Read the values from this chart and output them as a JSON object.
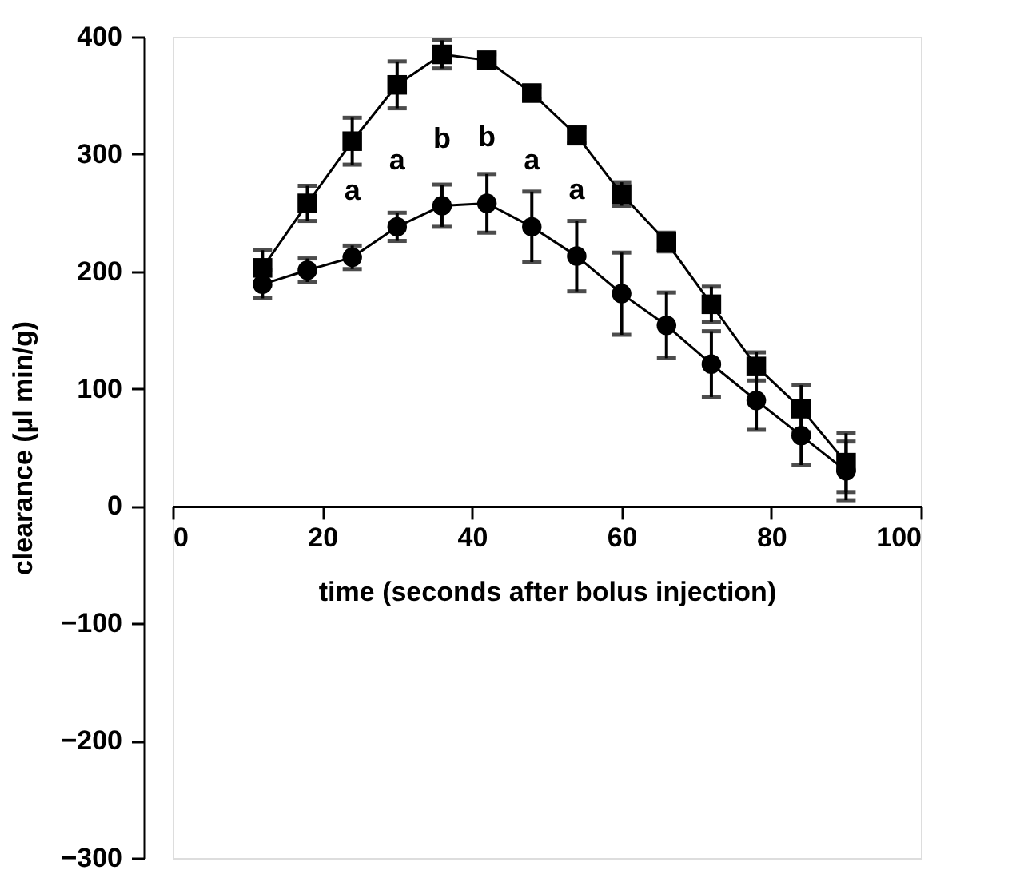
{
  "chart_data": {
    "type": "line",
    "xlabel": "time (seconds after bolus injection)",
    "ylabel": "clearance (µl min/g)",
    "x": [
      12,
      18,
      24,
      30,
      36,
      42,
      48,
      54,
      60,
      66,
      72,
      78,
      84,
      90
    ],
    "series": [
      {
        "color": "#000000",
        "marker": "square",
        "values": [
          203,
          258,
          311,
          359,
          385,
          380,
          352,
          316,
          266,
          225,
          172,
          119,
          83,
          37
        ],
        "errors": [
          15,
          15,
          20,
          20,
          12,
          5,
          5,
          7,
          10,
          8,
          15,
          12,
          20,
          25
        ]
      },
      {
        "color": "#000000",
        "marker": "circle",
        "values": [
          189,
          201,
          212,
          238,
          256,
          258,
          238,
          213,
          181,
          154,
          121,
          90,
          60,
          30
        ],
        "errors": [
          12,
          10,
          10,
          12,
          18,
          25,
          30,
          30,
          35,
          28,
          28,
          25,
          25,
          25
        ]
      }
    ],
    "annotations": [
      {
        "text": "a",
        "x": 24,
        "y": 212
      },
      {
        "text": "a",
        "x": 30,
        "y": 238
      },
      {
        "text": "b",
        "x": 36,
        "y": 256
      },
      {
        "text": "b",
        "x": 42,
        "y": 258
      },
      {
        "text": "a",
        "x": 48,
        "y": 238
      },
      {
        "text": "a",
        "x": 54,
        "y": 213
      }
    ],
    "xlim": [
      0,
      100
    ],
    "xticks": [
      0,
      20,
      40,
      60,
      80,
      100
    ],
    "ylim": [
      -300,
      400
    ],
    "yticks": [
      -300,
      -200,
      -100,
      0,
      100,
      200,
      300,
      400
    ],
    "grid": false,
    "line_style": "solid"
  }
}
